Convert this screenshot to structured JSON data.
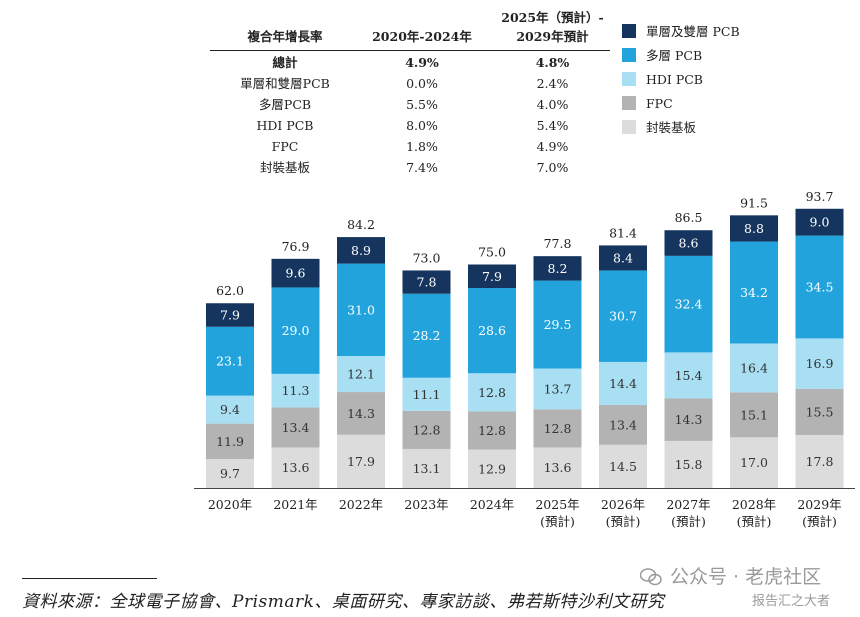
{
  "cagr_table": {
    "headers": [
      "複合年增長率",
      "2020年-2024年",
      "2025年（預計）-",
      "2029年預計"
    ],
    "rows": [
      [
        "總計",
        "4.9%",
        "4.8%"
      ],
      [
        "單層和雙層PCB",
        "0.0%",
        "2.4%"
      ],
      [
        "多層PCB",
        "5.5%",
        "4.0%"
      ],
      [
        "HDI PCB",
        "8.0%",
        "5.4%"
      ],
      [
        "FPC",
        "1.8%",
        "4.9%"
      ],
      [
        "封裝基板",
        "7.4%",
        "7.0%"
      ]
    ]
  },
  "legend": [
    {
      "label": "單層及雙層 PCB",
      "color": "#16355e"
    },
    {
      "label": "多層 PCB",
      "color": "#22a3dc"
    },
    {
      "label": "HDI PCB",
      "color": "#a8dff3"
    },
    {
      "label": "FPC",
      "color": "#b3b3b3"
    },
    {
      "label": "封裝基板",
      "color": "#dcdcdc"
    }
  ],
  "chart_data": {
    "type": "bar",
    "stacked": true,
    "categories": [
      "2020年",
      "2021年",
      "2022年",
      "2023年",
      "2024年",
      "2025年\n(預計)",
      "2026年\n(預計)",
      "2027年\n(預計)",
      "2028年\n(預計)",
      "2029年\n(預計)"
    ],
    "totals": [
      "62.0",
      "76.9",
      "84.2",
      "73.0",
      "75.0",
      "77.8",
      "81.4",
      "86.5",
      "91.5",
      "93.7"
    ],
    "series": [
      {
        "name": "封裝基板",
        "color": "#dcdcdc",
        "text_color": "#333333",
        "values": [
          9.7,
          13.6,
          17.9,
          13.1,
          12.9,
          13.6,
          14.5,
          15.8,
          17.0,
          17.8
        ]
      },
      {
        "name": "FPC",
        "color": "#b3b3b3",
        "text_color": "#333333",
        "values": [
          11.9,
          13.4,
          14.3,
          12.8,
          12.8,
          12.8,
          13.4,
          14.3,
          15.1,
          15.5
        ]
      },
      {
        "name": "HDI PCB",
        "color": "#a8dff3",
        "text_color": "#333333",
        "values": [
          9.4,
          11.3,
          12.1,
          11.1,
          12.8,
          13.7,
          14.4,
          15.4,
          16.4,
          16.9
        ]
      },
      {
        "name": "多層 PCB",
        "color": "#22a3dc",
        "text_color": "#ffffff",
        "values": [
          23.1,
          29.0,
          31.0,
          28.2,
          28.6,
          29.5,
          30.7,
          32.4,
          34.2,
          34.5
        ]
      },
      {
        "name": "單層及雙層 PCB",
        "color": "#16355e",
        "text_color": "#ffffff",
        "values": [
          7.9,
          9.6,
          8.9,
          7.8,
          7.9,
          8.2,
          8.4,
          8.6,
          8.8,
          9.0
        ]
      }
    ]
  },
  "source": "資料來源：全球電子協會、Prismark、桌面研究、專家訪談、弗若斯特沙利文研究",
  "watermark": {
    "line1": "公众号 · 老虎社区",
    "line2": "报告汇之大者"
  }
}
